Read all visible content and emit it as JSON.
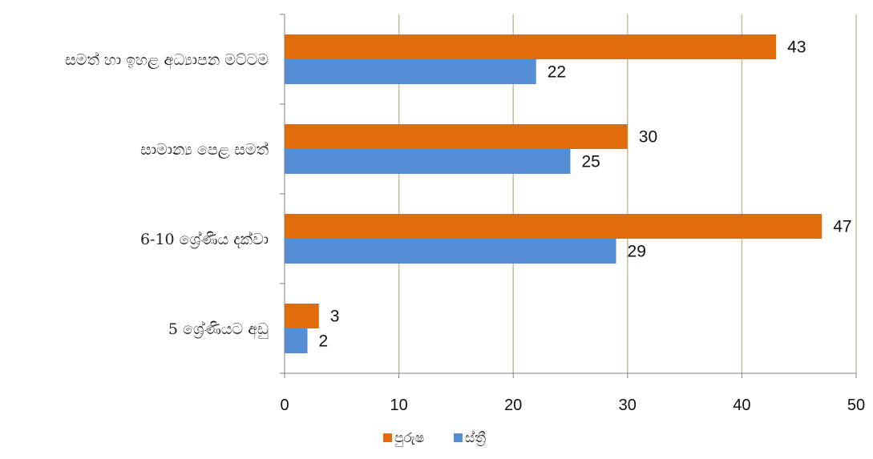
{
  "chart_data": {
    "type": "bar",
    "orientation": "horizontal",
    "categories": [
      "සමත් හා ඉහළ අධ්‍යාපන මට්ටම",
      "සාමාන්‍ය පෙළ සමත්",
      "6-10 ශ්‍රේණිය දක්වා",
      "5 ශ්‍රේණියට අඩු"
    ],
    "series": [
      {
        "name": "පුරුෂ",
        "values": [
          43,
          30,
          47,
          3
        ],
        "color": "#E36C0A"
      },
      {
        "name": "ස්ත්‍රී",
        "values": [
          22,
          25,
          29,
          2
        ],
        "color": "#558ED5"
      }
    ],
    "xlim": [
      0,
      50
    ],
    "xticks": [
      "0",
      "10",
      "20",
      "30",
      "40",
      "50"
    ],
    "grid": true,
    "grid_color": "#C4BD97",
    "axis_color": "#808080",
    "legend_position": "bottom"
  }
}
